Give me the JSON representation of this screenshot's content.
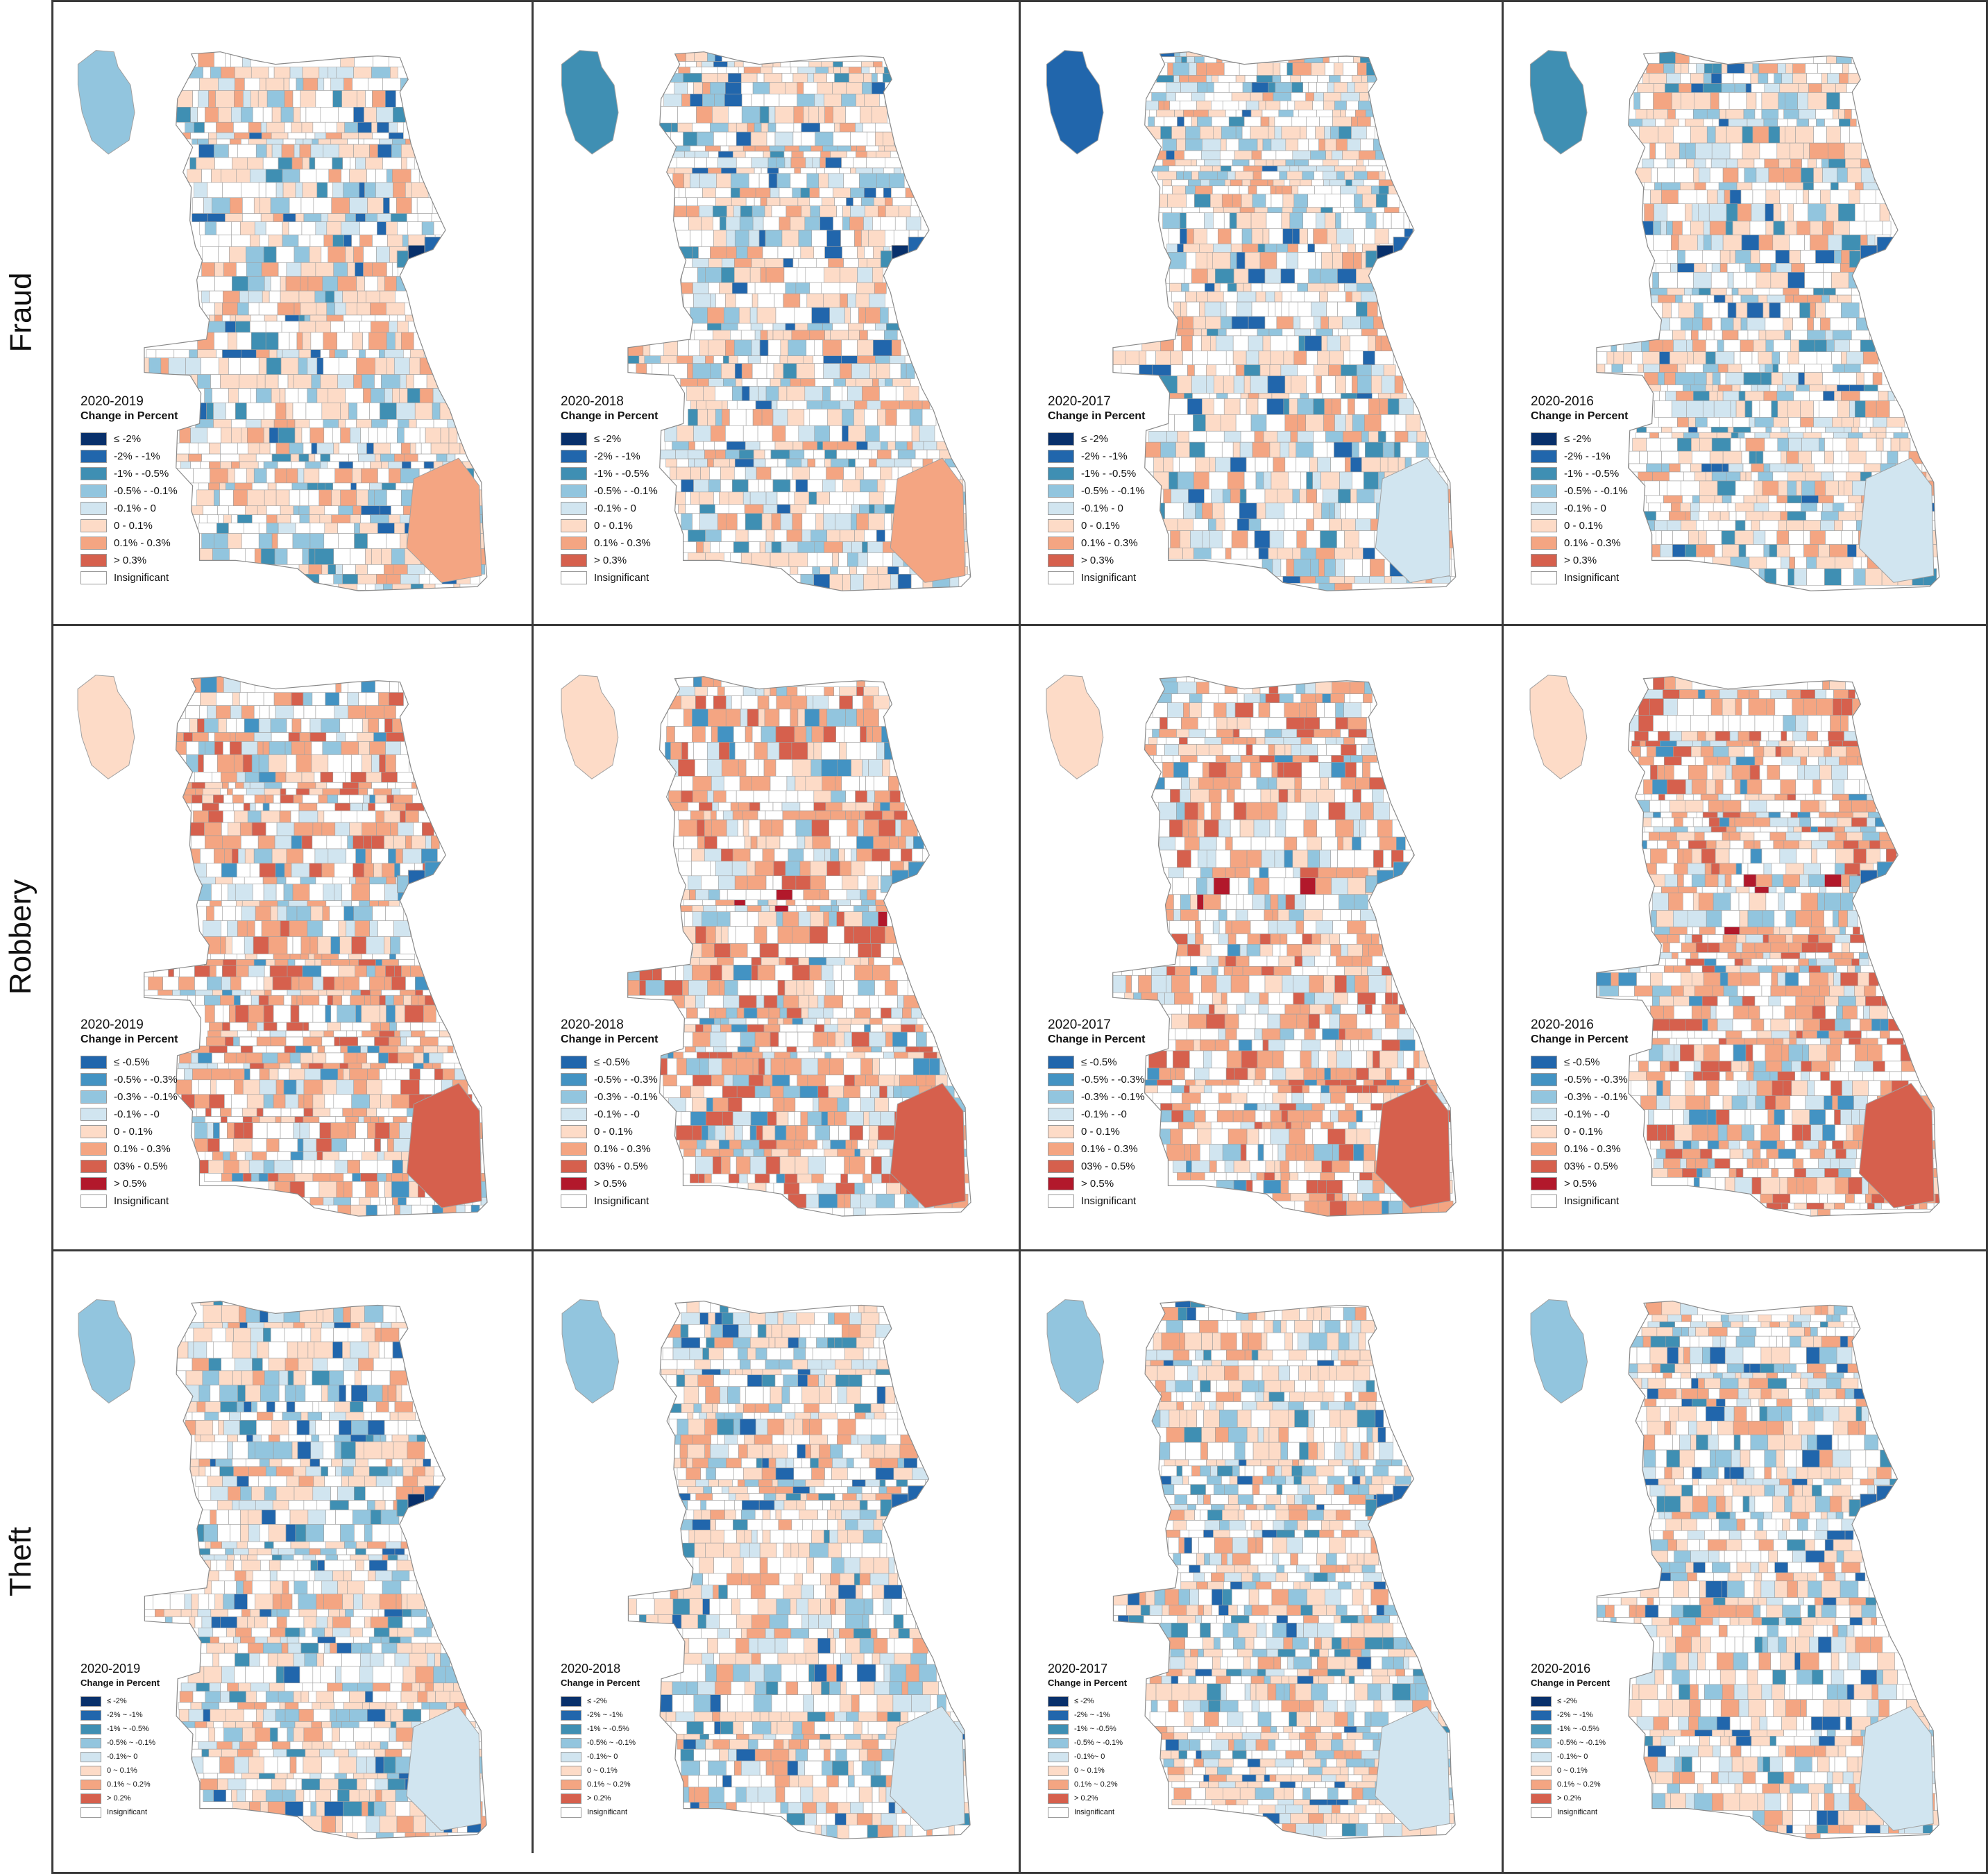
{
  "colors": {
    "neg_strong": "#08306b",
    "neg_2": "#2166ac",
    "neg_3": "#3f8fb3",
    "neg_4": "#92c5de",
    "neg_5": "#d1e5f0",
    "pos_1": "#fddbc7",
    "pos_2": "#f4a582",
    "pos_3": "#d6604d",
    "pos_4": "#b2182b",
    "insignificant": "#ffffff",
    "border": "#a0a0a0",
    "cyan_tract": "#7fe7e1"
  },
  "rows": [
    {
      "label": "Fraud",
      "legend": {
        "subtitle": "Change in Percent",
        "items": [
          {
            "label": "≤ -2%",
            "color": "#08306b"
          },
          {
            "label": "-2% - -1%",
            "color": "#2166ac"
          },
          {
            "label": "-1% - -0.5%",
            "color": "#3f8fb3"
          },
          {
            "label": "-0.5% - -0.1%",
            "color": "#92c5de"
          },
          {
            "label": "-0.1% - 0",
            "color": "#d1e5f0"
          },
          {
            "label": "0 - 0.1%",
            "color": "#fddbc7"
          },
          {
            "label": "0.1% - 0.3%",
            "color": "#f4a582"
          },
          {
            "label": "> 0.3%",
            "color": "#d6604d"
          },
          {
            "label": "Insignificant",
            "color": "#ffffff"
          }
        ]
      },
      "panels": [
        {
          "title": "2020-2019",
          "ohare_color": "#92c5de",
          "loop_color": "#08306b"
        },
        {
          "title": "2020-2018",
          "ohare_color": "#3f8fb3",
          "loop_color": "#08306b"
        },
        {
          "title": "2020-2017",
          "ohare_color": "#2166ac",
          "loop_color": "#08306b"
        },
        {
          "title": "2020-2016",
          "ohare_color": "#3f8fb3",
          "loop_color": "#2166ac"
        }
      ]
    },
    {
      "label": "Robbery",
      "legend": {
        "subtitle": "Change in Percent",
        "items": [
          {
            "label": "≤ -0.5%",
            "color": "#2166ac"
          },
          {
            "label": "-0.5% - -0.3%",
            "color": "#4393c3"
          },
          {
            "label": "-0.3% - -0.1%",
            "color": "#92c5de"
          },
          {
            "label": "-0.1% - -0",
            "color": "#d1e5f0"
          },
          {
            "label": "0 - 0.1%",
            "color": "#fddbc7"
          },
          {
            "label": "0.1% - 0.3%",
            "color": "#f4a582"
          },
          {
            "label": "03% - 0.5%",
            "color": "#d6604d"
          },
          {
            "label": "> 0.5%",
            "color": "#b2182b"
          },
          {
            "label": "Insignificant",
            "color": "#ffffff"
          }
        ]
      },
      "panels": [
        {
          "title": "2020-2019",
          "ohare_color": "#fddbc7",
          "loop_color": "#2166ac"
        },
        {
          "title": "2020-2018",
          "ohare_color": "#fddbc7",
          "loop_color": "#4393c3"
        },
        {
          "title": "2020-2017",
          "ohare_color": "#fddbc7",
          "loop_color": "#4393c3"
        },
        {
          "title": "2020-2016",
          "ohare_color": "#fddbc7",
          "loop_color": "#2166ac"
        }
      ]
    },
    {
      "label": "Theft",
      "legend": {
        "subtitle": "Change in Percent",
        "items": [
          {
            "label": "≤ -2%",
            "color": "#08306b"
          },
          {
            "label": "-2% ~ -1%",
            "color": "#2166ac"
          },
          {
            "label": "-1% ~ -0.5%",
            "color": "#3f8fb3"
          },
          {
            "label": "-0.5% ~ -0.1%",
            "color": "#92c5de"
          },
          {
            "label": "-0.1%~ 0",
            "color": "#d1e5f0"
          },
          {
            "label": "0 ~ 0.1%",
            "color": "#fddbc7"
          },
          {
            "label": "0.1% ~ 0.2%",
            "color": "#f4a582"
          },
          {
            "label": "> 0.2%",
            "color": "#d6604d"
          },
          {
            "label": "Insignificant",
            "color": "#ffffff"
          }
        ]
      },
      "panels": [
        {
          "title": "2020-2019",
          "ohare_color": "#92c5de",
          "loop_color": "#08306b"
        },
        {
          "title": "2020-2018",
          "ohare_color": "#92c5de",
          "loop_color": "#2166ac"
        },
        {
          "title": "2020-2017",
          "ohare_color": "#92c5de",
          "loop_color": "#2166ac"
        },
        {
          "title": "2020-2016",
          "ohare_color": "#92c5de",
          "loop_color": "#2166ac"
        }
      ]
    }
  ]
}
